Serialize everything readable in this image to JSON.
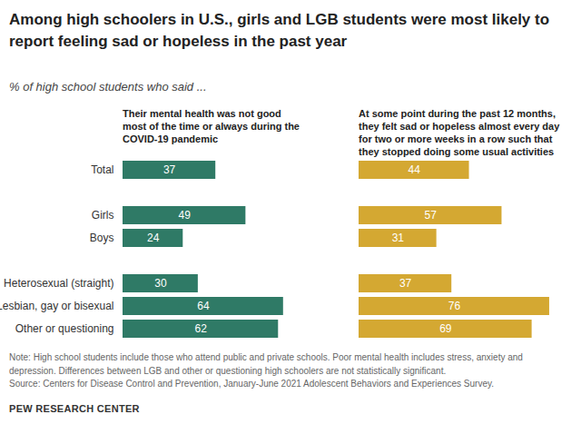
{
  "title": "Among high schoolers in U.S., girls and LGB students were most likely to report feeling sad or hopeless in the past year",
  "subtitle": "% of high school students who said ...",
  "note": "Note: High school students include those who attend public and private schools. Poor mental health includes stress, anxiety and depression. Differences between LGB and other or questioning high schoolers are not statistically significant.",
  "source": "Source: Centers for Disease Control and Prevention, January-June 2021 Adolescent Behaviors and Experiences Survey.",
  "credit": "PEW RESEARCH CENTER",
  "chart_data": [
    {
      "type": "bar",
      "orientation": "horizontal",
      "title": "Their mental health was not good most of the time or always during the COVID-19 pandemic",
      "categories": [
        "Total",
        null,
        "Girls",
        "Boys",
        null,
        "Heterosexual (straight)",
        "Lesbian, gay or bisexual",
        "Other or questioning"
      ],
      "values": [
        37,
        null,
        49,
        24,
        null,
        30,
        64,
        62
      ],
      "color": "#2f7a66",
      "xlim": [
        0,
        80
      ],
      "data_labels": true,
      "tick_labels": "y"
    },
    {
      "type": "bar",
      "orientation": "horizontal",
      "title": "At some point during the past 12 months, they felt sad or hopeless almost every day for two or more weeks in a row such that they stopped doing some usual activities",
      "categories": [
        "Total",
        null,
        "Girls",
        "Boys",
        null,
        "Heterosexual (straight)",
        "Lesbian, gay or bisexual",
        "Other or questioning"
      ],
      "values": [
        44,
        null,
        57,
        31,
        null,
        37,
        76,
        69
      ],
      "color": "#d4a832",
      "xlim": [
        0,
        80
      ],
      "data_labels": true,
      "tick_labels": false
    }
  ]
}
